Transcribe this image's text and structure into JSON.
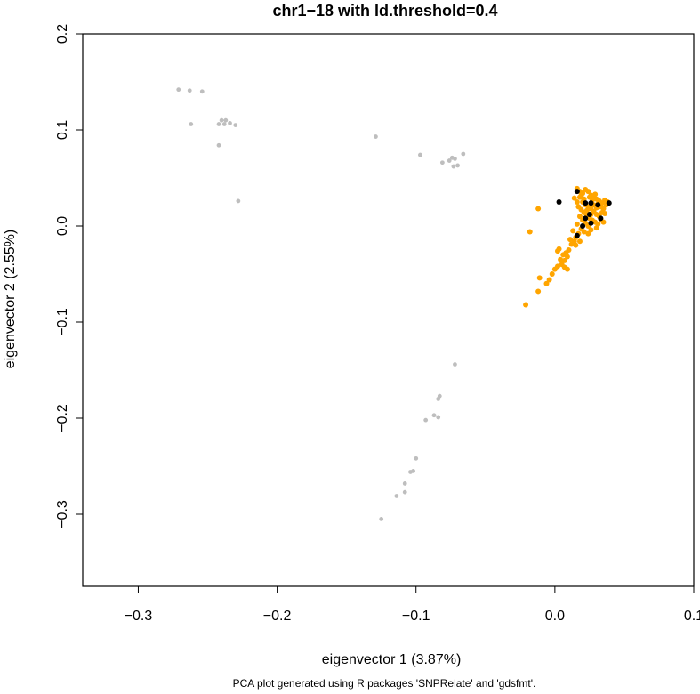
{
  "chart_data": {
    "type": "scatter",
    "title": "chr1−18 with ld.threshold=0.4",
    "xlabel": "eigenvector 1 (3.87%)",
    "ylabel": "eigenvector 2 (2.55%)",
    "caption": "PCA plot generated using R packages 'SNPRelate' and 'gdsfmt'.",
    "xlim": [
      -0.34,
      0.1
    ],
    "ylim": [
      -0.375,
      0.2
    ],
    "x_ticks": [
      -0.3,
      -0.2,
      -0.1,
      0.0,
      0.1
    ],
    "x_tick_labels": [
      "−0.3",
      "−0.2",
      "−0.1",
      "0.0",
      "0.1"
    ],
    "y_ticks": [
      -0.3,
      -0.2,
      -0.1,
      0.0,
      0.1,
      0.2
    ],
    "y_tick_labels": [
      "−0.3",
      "−0.2",
      "−0.1",
      "0.0",
      "0.1",
      "0.2"
    ],
    "grid": false,
    "legend": false,
    "series": [
      {
        "color": "#bebebe",
        "points": [
          [
            -0.271,
            0.142
          ],
          [
            -0.263,
            0.141
          ],
          [
            -0.254,
            0.14
          ],
          [
            -0.262,
            0.106
          ],
          [
            -0.242,
            0.106
          ],
          [
            -0.24,
            0.11
          ],
          [
            -0.237,
            0.11
          ],
          [
            -0.238,
            0.106
          ],
          [
            -0.234,
            0.107
          ],
          [
            -0.23,
            0.105
          ],
          [
            -0.242,
            0.084
          ],
          [
            -0.228,
            0.026
          ],
          [
            -0.129,
            0.093
          ],
          [
            -0.097,
            0.074
          ],
          [
            -0.081,
            0.066
          ],
          [
            -0.076,
            0.068
          ],
          [
            -0.074,
            0.071
          ],
          [
            -0.072,
            0.07
          ],
          [
            -0.073,
            0.062
          ],
          [
            -0.07,
            0.063
          ],
          [
            -0.066,
            0.075
          ],
          [
            -0.072,
            -0.144
          ],
          [
            -0.083,
            -0.177
          ],
          [
            -0.084,
            -0.18
          ],
          [
            -0.087,
            -0.197
          ],
          [
            -0.084,
            -0.199
          ],
          [
            -0.093,
            -0.202
          ],
          [
            -0.1,
            -0.242
          ],
          [
            -0.102,
            -0.255
          ],
          [
            -0.104,
            -0.256
          ],
          [
            -0.108,
            -0.268
          ],
          [
            -0.108,
            -0.277
          ],
          [
            -0.114,
            -0.281
          ],
          [
            -0.125,
            -0.305
          ]
        ]
      },
      {
        "color": "#ffa500",
        "points": [
          [
            -0.021,
            -0.082
          ],
          [
            -0.012,
            -0.068
          ],
          [
            -0.011,
            -0.054
          ],
          [
            -0.006,
            -0.06
          ],
          [
            -0.004,
            -0.056
          ],
          [
            -0.002,
            -0.05
          ],
          [
            0.0,
            -0.045
          ],
          [
            0.002,
            -0.042
          ],
          [
            0.005,
            -0.04
          ],
          [
            0.007,
            -0.043
          ],
          [
            0.009,
            -0.045
          ],
          [
            0.004,
            -0.035
          ],
          [
            0.006,
            -0.03
          ],
          [
            0.008,
            -0.028
          ],
          [
            0.01,
            -0.025
          ],
          [
            0.003,
            -0.024
          ],
          [
            0.012,
            -0.019
          ],
          [
            0.015,
            -0.02
          ],
          [
            0.018,
            -0.016
          ],
          [
            0.002,
            -0.026
          ],
          [
            0.007,
            -0.036
          ],
          [
            0.009,
            -0.032
          ],
          [
            -0.018,
            -0.006
          ],
          [
            -0.012,
            0.018
          ],
          [
            0.016,
            0.039
          ],
          [
            0.018,
            0.036
          ],
          [
            0.02,
            0.034
          ],
          [
            0.022,
            0.038
          ],
          [
            0.024,
            0.036
          ],
          [
            0.026,
            0.032
          ],
          [
            0.028,
            0.03
          ],
          [
            0.03,
            0.028
          ],
          [
            0.032,
            0.026
          ],
          [
            0.034,
            0.024
          ],
          [
            0.036,
            0.027
          ],
          [
            0.018,
            0.03
          ],
          [
            0.02,
            0.025
          ],
          [
            0.022,
            0.022
          ],
          [
            0.024,
            0.02
          ],
          [
            0.026,
            0.018
          ],
          [
            0.028,
            0.015
          ],
          [
            0.03,
            0.012
          ],
          [
            0.032,
            0.01
          ],
          [
            0.034,
            0.014
          ],
          [
            0.017,
            0.02
          ],
          [
            0.019,
            0.017
          ],
          [
            0.021,
            0.014
          ],
          [
            0.023,
            0.011
          ],
          [
            0.025,
            0.008
          ],
          [
            0.027,
            0.006
          ],
          [
            0.029,
            0.004
          ],
          [
            0.031,
            0.002
          ],
          [
            0.02,
            0.006
          ],
          [
            0.022,
            0.003
          ],
          [
            0.024,
            0.0
          ],
          [
            0.019,
            -0.003
          ],
          [
            0.021,
            -0.006
          ],
          [
            0.017,
            -0.008
          ],
          [
            0.015,
            -0.012
          ],
          [
            0.028,
            0.022
          ],
          [
            0.03,
            0.019
          ],
          [
            0.033,
            0.02
          ],
          [
            0.035,
            0.018
          ],
          [
            0.037,
            0.022
          ],
          [
            0.016,
            0.025
          ],
          [
            0.014,
            0.029
          ],
          [
            0.027,
            0.027
          ],
          [
            0.025,
            0.03
          ],
          [
            0.029,
            0.033
          ],
          [
            0.031,
            0.023
          ],
          [
            0.018,
            0.01
          ],
          [
            0.026,
            0.012
          ],
          [
            0.023,
            0.016
          ],
          [
            0.016,
            0.002
          ],
          [
            0.013,
            -0.005
          ],
          [
            0.011,
            -0.014
          ],
          [
            0.014,
            -0.016
          ],
          [
            0.033,
            0.007
          ],
          [
            0.035,
            0.004
          ],
          [
            0.03,
            -0.002
          ],
          [
            0.026,
            -0.004
          ],
          [
            0.024,
            -0.008
          ],
          [
            0.021,
            0.028
          ],
          [
            0.019,
            0.032
          ],
          [
            0.038,
            0.025
          ],
          [
            0.036,
            0.013
          ]
        ]
      },
      {
        "color": "#000000",
        "points": [
          [
            0.003,
            0.025
          ],
          [
            0.016,
            0.036
          ],
          [
            0.022,
            0.024
          ],
          [
            0.026,
            0.024
          ],
          [
            0.031,
            0.022
          ],
          [
            0.039,
            0.024
          ],
          [
            0.025,
            0.012
          ],
          [
            0.022,
            0.008
          ],
          [
            0.033,
            0.008
          ],
          [
            0.026,
            0.003
          ],
          [
            0.02,
            0.0
          ],
          [
            0.016,
            -0.01
          ]
        ]
      }
    ]
  }
}
